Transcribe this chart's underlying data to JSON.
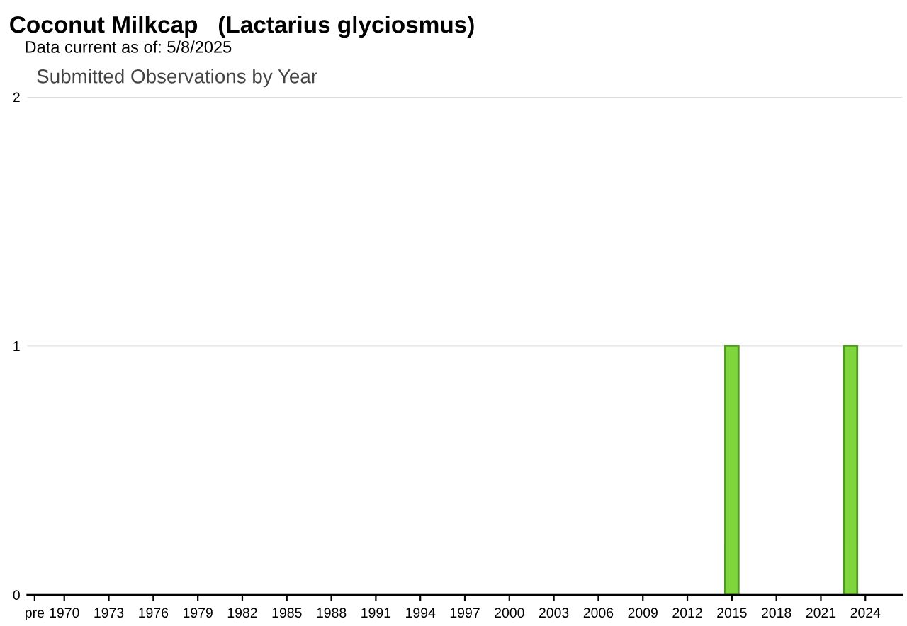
{
  "chart_data": {
    "type": "bar",
    "title": "Coconut Milkcap   (Lactarius glyciosmus)",
    "subtitle": "Data current as of: 5/8/2025",
    "annotations": [
      "Submitted Observations by Year"
    ],
    "categories": [
      "pre",
      null,
      "1970",
      null,
      null,
      "1973",
      null,
      null,
      "1976",
      null,
      null,
      "1979",
      null,
      null,
      "1982",
      null,
      null,
      "1985",
      null,
      null,
      "1988",
      null,
      null,
      "1991",
      null,
      null,
      "1994",
      null,
      null,
      "1997",
      null,
      null,
      "2000",
      null,
      null,
      "2003",
      null,
      null,
      "2006",
      null,
      null,
      "2009",
      null,
      null,
      "2012",
      null,
      null,
      "2015",
      null,
      null,
      "2018",
      null,
      null,
      "2021",
      null,
      null,
      "2024",
      null,
      null
    ],
    "values": [
      0,
      0,
      0,
      0,
      0,
      0,
      0,
      0,
      0,
      0,
      0,
      0,
      0,
      0,
      0,
      0,
      0,
      0,
      0,
      0,
      0,
      0,
      0,
      0,
      0,
      0,
      0,
      0,
      0,
      0,
      0,
      0,
      0,
      0,
      0,
      0,
      0,
      0,
      0,
      0,
      0,
      0,
      0,
      0,
      0,
      0,
      0,
      1,
      0,
      0,
      0,
      0,
      0,
      0,
      0,
      1,
      0,
      0,
      0
    ],
    "color": "#7ed63c",
    "ylim": [
      0,
      2
    ],
    "yticks": [
      0,
      1,
      2
    ],
    "grid": "y"
  }
}
